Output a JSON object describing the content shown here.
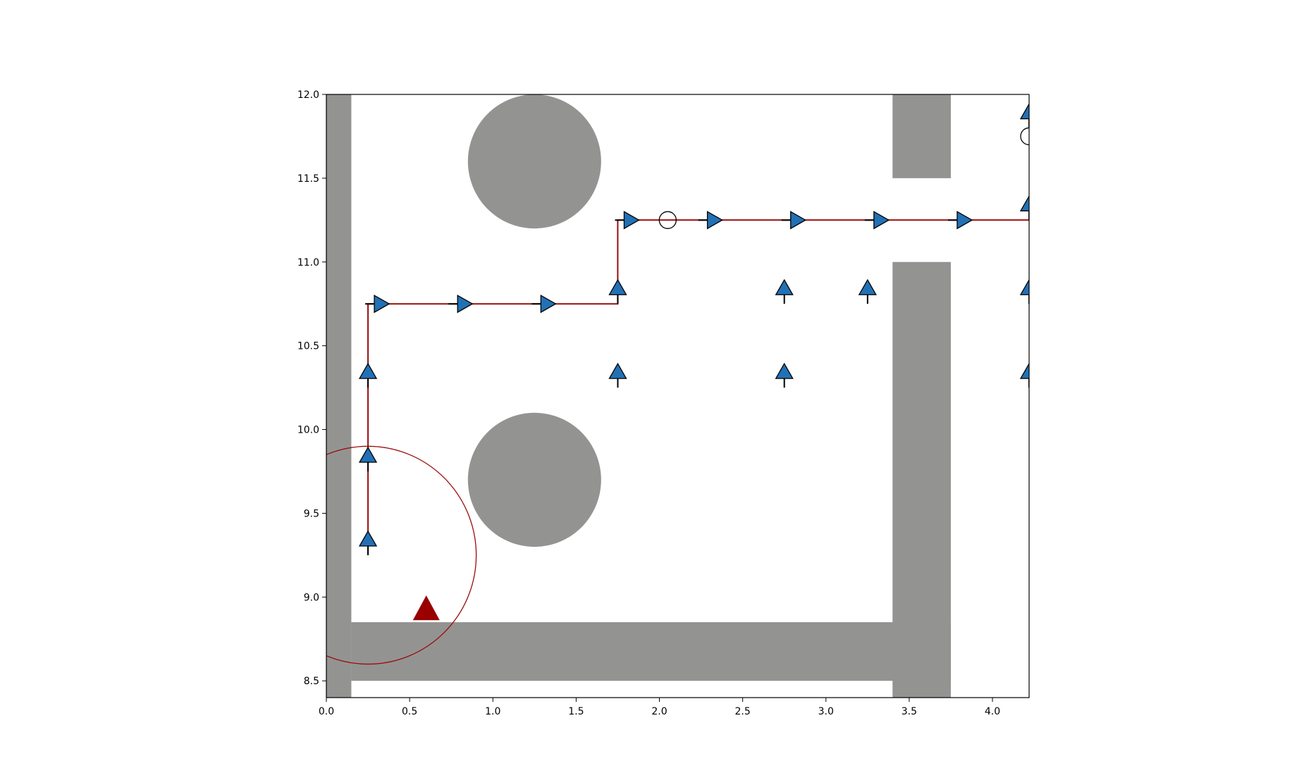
{
  "chart_data": {
    "type": "scatter",
    "xlim": [
      0.0,
      4.22
    ],
    "ylim": [
      8.4,
      12.0
    ],
    "xticks": [
      "0.0",
      "0.5",
      "1.0",
      "1.5",
      "2.0",
      "2.5",
      "3.0",
      "3.5",
      "4.0"
    ],
    "yticks": [
      "8.5",
      "9.0",
      "9.5",
      "10.0",
      "10.5",
      "11.0",
      "11.5",
      "12.0"
    ],
    "grid": false,
    "colors": {
      "obstacle": "#939492",
      "marker": "#2271b5",
      "path": "#9b0c0c",
      "robot": "#990000"
    },
    "obstacles": {
      "rects": [
        {
          "x0": 0.0,
          "x1": 0.15,
          "y0": 8.4,
          "y1": 12.0
        },
        {
          "x0": 0.15,
          "x1": 3.75,
          "y0": 8.5,
          "y1": 8.85
        },
        {
          "x0": 3.4,
          "x1": 3.75,
          "y0": 8.4,
          "y1": 11.0
        },
        {
          "x0": 3.4,
          "x1": 3.75,
          "y0": 11.5,
          "y1": 12.0
        }
      ],
      "circles": [
        {
          "cx": 1.25,
          "cy": 11.6,
          "r": 0.4
        },
        {
          "cx": 1.25,
          "cy": 9.7,
          "r": 0.4
        }
      ]
    },
    "path": [
      [
        0.25,
        9.25
      ],
      [
        0.25,
        10.75
      ],
      [
        1.75,
        10.75
      ],
      [
        1.75,
        11.25
      ],
      [
        4.22,
        11.25
      ]
    ],
    "markers_up": [
      [
        0.25,
        9.25
      ],
      [
        0.25,
        9.75
      ],
      [
        0.25,
        10.25
      ],
      [
        1.75,
        10.75
      ],
      [
        1.75,
        10.25
      ],
      [
        2.75,
        10.75
      ],
      [
        2.75,
        10.25
      ],
      [
        3.25,
        10.75
      ],
      [
        4.22,
        10.75
      ],
      [
        4.22,
        10.25
      ],
      [
        4.22,
        11.25
      ],
      [
        4.22,
        11.8
      ]
    ],
    "markers_right": [
      [
        0.25,
        10.75
      ],
      [
        0.75,
        10.75
      ],
      [
        1.25,
        10.75
      ],
      [
        1.75,
        11.25
      ],
      [
        2.25,
        11.25
      ],
      [
        2.75,
        11.25
      ],
      [
        3.25,
        11.25
      ],
      [
        3.75,
        11.25
      ]
    ],
    "open_circles": [
      [
        2.05,
        11.25
      ],
      [
        4.22,
        11.75
      ]
    ],
    "robot": {
      "x": 0.6,
      "y": 8.93
    },
    "sensor_circle": {
      "cx": 0.25,
      "cy": 9.25,
      "r": 0.65
    }
  }
}
